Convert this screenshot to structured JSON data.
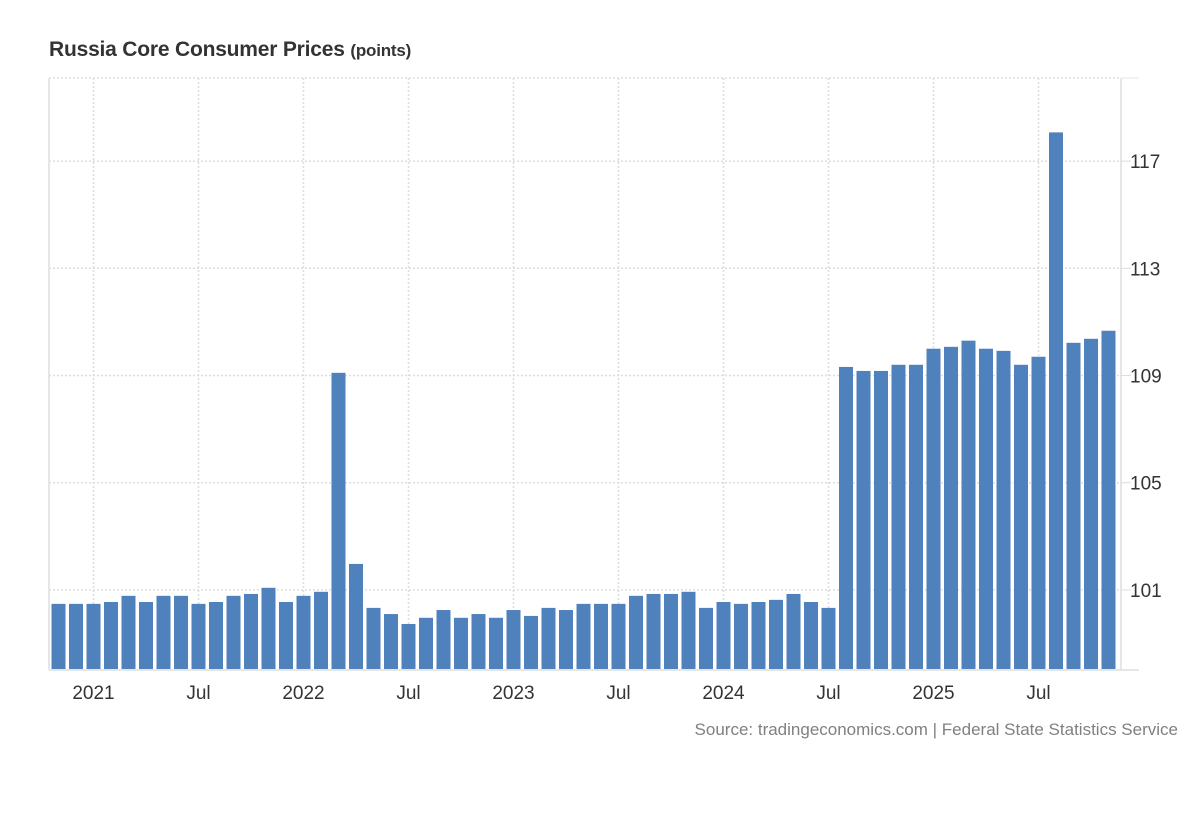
{
  "chart_data": {
    "type": "bar",
    "title": "Russia Core Consumer Prices",
    "unit_label": "(points)",
    "xlabel": "",
    "ylabel": "",
    "ylim": [
      98.05,
      120.1
    ],
    "yticks": [
      101,
      105,
      109,
      113,
      117
    ],
    "ytick_labels": [
      "101",
      "105",
      "109",
      "113",
      "117"
    ],
    "xtick_labels": [
      {
        "label": "2021",
        "category": "2021-01"
      },
      {
        "label": "Jul",
        "category": "2021-07"
      },
      {
        "label": "2022",
        "category": "2022-01"
      },
      {
        "label": "Jul",
        "category": "2022-07"
      },
      {
        "label": "2023",
        "category": "2023-01"
      },
      {
        "label": "Jul",
        "category": "2023-07"
      },
      {
        "label": "2024",
        "category": "2024-01"
      },
      {
        "label": "Jul",
        "category": "2024-07"
      },
      {
        "label": "2025",
        "category": "2025-01"
      },
      {
        "label": "Jul",
        "category": "2025-07"
      }
    ],
    "grid": true,
    "legend": "none",
    "series_color": "#4f81bd",
    "categories": [
      "2020-11",
      "2020-12",
      "2021-01",
      "2021-02",
      "2021-03",
      "2021-04",
      "2021-05",
      "2021-06",
      "2021-07",
      "2021-08",
      "2021-09",
      "2021-10",
      "2021-11",
      "2021-12",
      "2022-01",
      "2022-02",
      "2022-03",
      "2022-04",
      "2022-05",
      "2022-06",
      "2022-07",
      "2022-08",
      "2022-09",
      "2022-10",
      "2022-11",
      "2022-12",
      "2023-01",
      "2023-02",
      "2023-03",
      "2023-04",
      "2023-05",
      "2023-06",
      "2023-07",
      "2023-08",
      "2023-09",
      "2023-10",
      "2023-11",
      "2023-12",
      "2024-01",
      "2024-02",
      "2024-03",
      "2024-04",
      "2024-05",
      "2024-06",
      "2024-07",
      "2024-08",
      "2024-09",
      "2024-10",
      "2024-11",
      "2024-12",
      "2025-01",
      "2025-02",
      "2025-03",
      "2025-04",
      "2025-05",
      "2025-06",
      "2025-07",
      "2025-08",
      "2025-09",
      "2025-10",
      "2025-11"
    ],
    "values": [
      100.48,
      100.48,
      100.48,
      100.55,
      100.78,
      100.55,
      100.78,
      100.78,
      100.48,
      100.55,
      100.78,
      100.85,
      101.08,
      100.55,
      100.78,
      100.93,
      109.1,
      101.97,
      100.33,
      100.1,
      99.73,
      99.96,
      100.25,
      99.96,
      100.1,
      99.96,
      100.25,
      100.03,
      100.33,
      100.25,
      100.48,
      100.48,
      100.48,
      100.78,
      100.85,
      100.85,
      100.93,
      100.33,
      100.55,
      100.48,
      100.55,
      100.63,
      100.85,
      100.55,
      100.33,
      109.32,
      109.17,
      109.17,
      109.4,
      109.4,
      110.0,
      110.07,
      110.3,
      110.0,
      109.92,
      109.4,
      109.7,
      118.07,
      110.22,
      110.37,
      110.67
    ]
  },
  "source_text": "Source: tradingeconomics.com | Federal State Statistics Service"
}
